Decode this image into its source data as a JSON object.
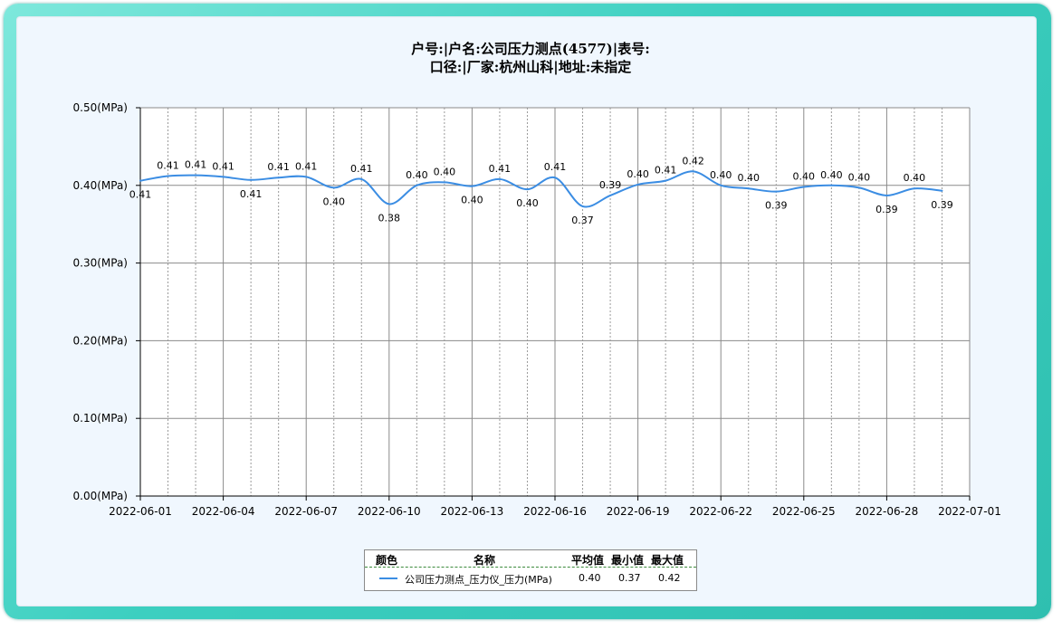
{
  "title": {
    "line1": "户号:|户名:公司压力测点(4577)|表号:",
    "line2": "口径:|厂家:杭州山科|地址:未指定"
  },
  "chart_data": {
    "type": "line",
    "title": "户号:|户名:公司压力测点(4577)|表号: 口径:|厂家:杭州山科|地址:未指定",
    "xlabel": "",
    "ylabel": "",
    "x_ticks": [
      "2022-06-01",
      "2022-06-04",
      "2022-06-07",
      "2022-06-10",
      "2022-06-13",
      "2022-06-16",
      "2022-06-19",
      "2022-06-22",
      "2022-06-25",
      "2022-06-28",
      "2022-07-01"
    ],
    "y_ticks": [
      "0.00(MPa)",
      "0.10(MPa)",
      "0.20(MPa)",
      "0.30(MPa)",
      "0.40(MPa)",
      "0.50(MPa)"
    ],
    "ylim": [
      0,
      0.5
    ],
    "xlim": [
      "2022-06-01",
      "2022-07-01"
    ],
    "grid": true,
    "series": [
      {
        "name": "公司压力测点_压力仪_压力(MPa)",
        "color": "#3b8de3",
        "x": [
          "2022-06-01",
          "2022-06-02",
          "2022-06-03",
          "2022-06-04",
          "2022-06-05",
          "2022-06-06",
          "2022-06-07",
          "2022-06-08",
          "2022-06-09",
          "2022-06-10",
          "2022-06-11",
          "2022-06-12",
          "2022-06-13",
          "2022-06-14",
          "2022-06-15",
          "2022-06-16",
          "2022-06-17",
          "2022-06-18",
          "2022-06-19",
          "2022-06-20",
          "2022-06-21",
          "2022-06-22",
          "2022-06-23",
          "2022-06-24",
          "2022-06-25",
          "2022-06-26",
          "2022-06-27",
          "2022-06-28",
          "2022-06-29",
          "2022-06-30"
        ],
        "values": [
          0.406,
          0.412,
          0.413,
          0.411,
          0.407,
          0.41,
          0.411,
          0.397,
          0.408,
          0.376,
          0.4,
          0.404,
          0.399,
          0.408,
          0.395,
          0.41,
          0.373,
          0.387,
          0.401,
          0.406,
          0.418,
          0.4,
          0.396,
          0.392,
          0.398,
          0.4,
          0.397,
          0.387,
          0.396,
          0.393
        ],
        "labels": [
          "0.41",
          "0.41",
          "0.41",
          "0.41",
          "0.41",
          "0.41",
          "0.41",
          "0.40",
          "0.41",
          "0.38",
          "0.40",
          "0.40",
          "0.40",
          "0.41",
          "0.40",
          "0.41",
          "0.37",
          "0.39",
          "0.40",
          "0.41",
          "0.42",
          "0.40",
          "0.40",
          "0.39",
          "0.40",
          "0.40",
          "0.40",
          "0.39",
          "0.40",
          "0.39"
        ],
        "label_pos": [
          "below",
          "above",
          "above",
          "above",
          "below",
          "above",
          "above",
          "below",
          "above",
          "below",
          "above",
          "above",
          "below",
          "above",
          "below",
          "above",
          "below",
          "above",
          "above",
          "above",
          "above",
          "above",
          "above",
          "below",
          "above",
          "above",
          "above",
          "below",
          "above",
          "below"
        ]
      }
    ]
  },
  "legend": {
    "headers": {
      "color": "颜色",
      "name": "名称",
      "avg": "平均值",
      "min": "最小值",
      "max": "最大值"
    },
    "rows": [
      {
        "name": "公司压力测点_压力仪_压力(MPa)",
        "avg": "0.40",
        "min": "0.37",
        "max": "0.42",
        "color": "#3b8de3"
      }
    ]
  }
}
